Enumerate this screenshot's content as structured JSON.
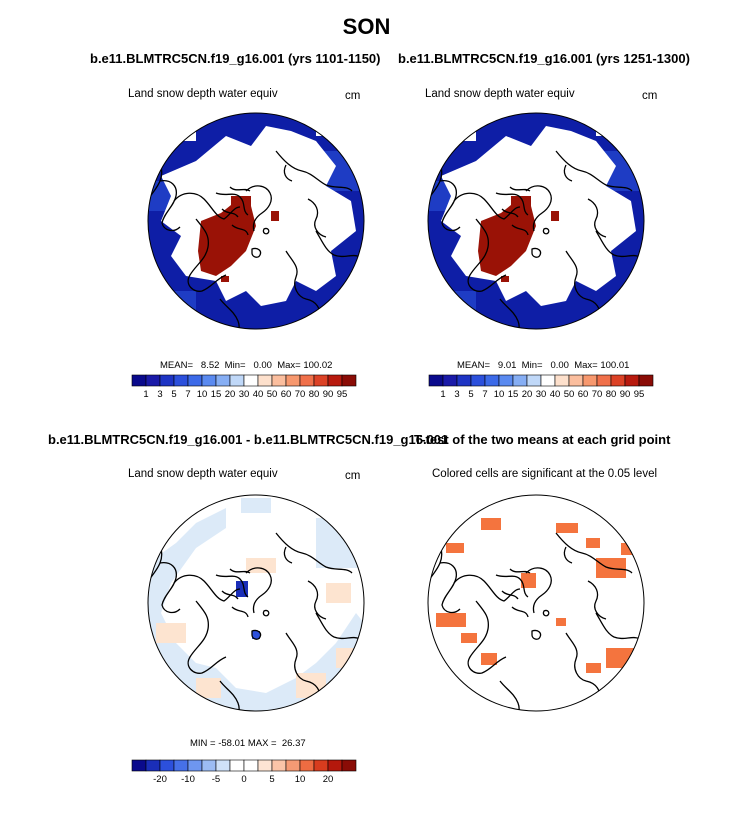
{
  "season": "SON",
  "panels": [
    {
      "title": "b.e11.BLMTRC5CN.f19_g16.001 (yrs 1101-1150)",
      "field": "Land snow depth water equiv",
      "units": "cm",
      "stats": "MEAN=   8.52  Min=   0.00  Max= 100.02"
    },
    {
      "title": "b.e11.BLMTRC5CN.f19_g16.001 (yrs 1251-1300)",
      "field": "Land snow depth water equiv",
      "units": "cm",
      "stats": "MEAN=   9.01  Min=   0.00  Max= 100.01"
    },
    {
      "title": "b.e11.BLMTRC5CN.f19_g16.001 - b.e11.BLMTRC5CN.f19_g16.001",
      "field": "Land snow depth water equiv",
      "units": "cm",
      "stats": "MIN = -58.01 MAX =  26.37"
    },
    {
      "title": "T-test of the two means at each grid point",
      "field": "Colored cells are significant at the 0.05 level"
    }
  ],
  "colorbar_abs": {
    "labels": [
      "1",
      "3",
      "5",
      "7",
      "10",
      "15",
      "20",
      "30",
      "40",
      "50",
      "60",
      "70",
      "80",
      "90",
      "95"
    ],
    "colors": [
      "#0a0a8c",
      "#1a1aa8",
      "#1e34c4",
      "#2c50dc",
      "#3c6ae8",
      "#5a8af0",
      "#86aef4",
      "#c0d8f8",
      "#ffffff",
      "#fde0cc",
      "#fbbe9e",
      "#f7986e",
      "#f0704a",
      "#dc4226",
      "#b81a0e",
      "#8a0c06"
    ]
  },
  "colorbar_diff": {
    "labels": [
      "-20",
      "-10",
      "-5",
      "0",
      "5",
      "10",
      "20"
    ],
    "colors": [
      "#0a0a8c",
      "#1a2eb8",
      "#2c50dc",
      "#4670e8",
      "#6e96f0",
      "#9cbcf4",
      "#cfe1f8",
      "#ffffff",
      "#ffffff",
      "#fde4d4",
      "#fac4a8",
      "#f59a74",
      "#ee6c42",
      "#d83c1e",
      "#b4180c",
      "#8a0c06"
    ]
  },
  "map_colors": {
    "deep_blue": "#0e1ea6",
    "mid_blue": "#1e3cc4",
    "snow_red": "#9a1206",
    "diff_light_blue": "#dceaf8",
    "diff_light_orange": "#fde4d0",
    "sig_orange": "#f4743e"
  }
}
